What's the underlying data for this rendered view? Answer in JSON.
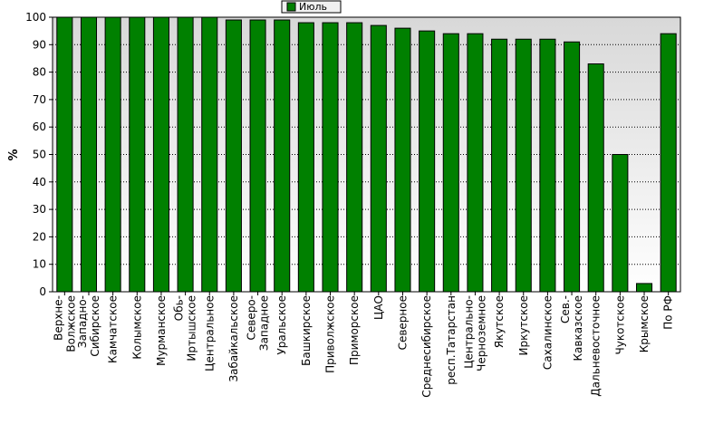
{
  "colors": {
    "bar_fill": "#008000",
    "bar_stroke": "#000000",
    "plot_bg_top": "#d8d8d8",
    "plot_bg_bottom": "#ffffff",
    "grid": "#000000"
  },
  "chart_data": {
    "type": "bar",
    "title": "",
    "xlabel": "",
    "ylabel": "%",
    "ylim": [
      0,
      100
    ],
    "yticks": [
      0,
      10,
      20,
      30,
      40,
      50,
      60,
      70,
      80,
      90,
      100
    ],
    "grid": true,
    "legend": {
      "placement": "top-center",
      "entries": [
        "Июль"
      ]
    },
    "categories": [
      [
        "Верхне-",
        "Волжское"
      ],
      [
        "Западно-",
        "Сибирское"
      ],
      [
        "Камчатское"
      ],
      [
        "Колымское"
      ],
      [
        "Мурманское"
      ],
      [
        "Обь-",
        "Иртышское"
      ],
      [
        "Центральное"
      ],
      [
        "Забайкальское"
      ],
      [
        "Северо-",
        "Западное"
      ],
      [
        "Уральское"
      ],
      [
        "Башкирское"
      ],
      [
        "Приволжское"
      ],
      [
        "Приморское"
      ],
      [
        "ЦАО"
      ],
      [
        "Северное"
      ],
      [
        "Среднесибирское"
      ],
      [
        "респ.Татарстан"
      ],
      [
        "Центрально-",
        "Черноземное"
      ],
      [
        "Якутское"
      ],
      [
        "Иркутское"
      ],
      [
        "Сахалинское"
      ],
      [
        "Сев.-",
        "Кавказское"
      ],
      [
        "Дальневосточное"
      ],
      [
        "Чукотское"
      ],
      [
        "Крымское"
      ],
      [
        "По РФ"
      ]
    ],
    "series": [
      {
        "name": "Июль",
        "values": [
          100,
          100,
          100,
          100,
          100,
          100,
          100,
          99,
          99,
          99,
          98,
          98,
          98,
          97,
          96,
          95,
          94,
          94,
          92,
          92,
          92,
          91,
          83,
          50,
          3,
          94
        ]
      }
    ]
  }
}
